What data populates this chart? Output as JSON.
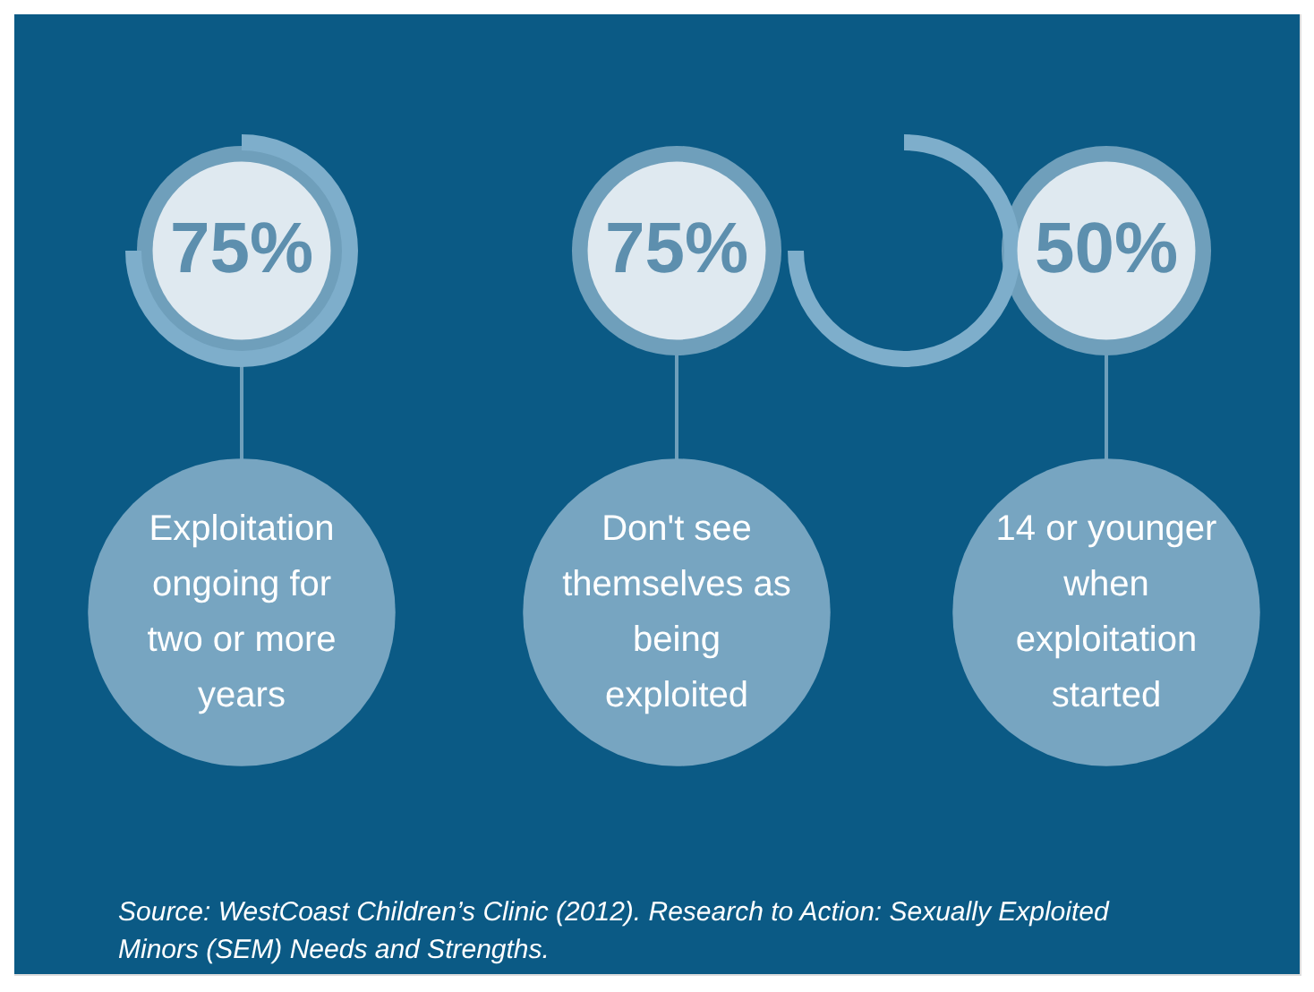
{
  "chart_data": {
    "type": "other",
    "categories": [
      "Exploitation ongoing for two or more years",
      "Don't see themselves as being exploited",
      "14 or younger when exploitation started"
    ],
    "values": [
      75,
      75,
      50
    ],
    "value_labels": [
      "75%",
      "75%",
      "50%"
    ],
    "annotations": [
      "Source: WestCoast Children’s Clinic (2012). Research to Action: Sexually Exploited Minors (SEM) Needs and Strengths."
    ]
  }
}
